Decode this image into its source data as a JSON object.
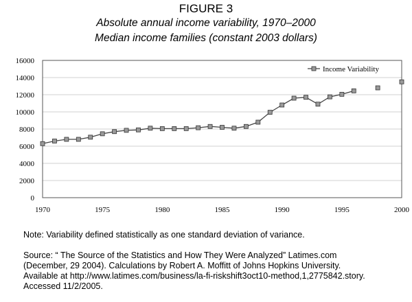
{
  "figure_label": "FIGURE 3",
  "note": "Note: Variability defined statistically as one standard deviation of variance.",
  "source_lines": [
    "Source: “ The Source of the Statistics and How They Were Analyzed”  Latimes.com",
    "(December, 29 2004).  Calculations by Robert A. Moffitt of Johns Hopkins University.",
    "Available at http://www.latimes.com/business/la-fi-riskshift3oct10-method,1,2775842.story.",
    "Accessed 11/2/2005."
  ],
  "chart_data": {
    "type": "line",
    "title": "Absolute annual income variability, 1970–2000",
    "subtitle": "Median income families (constant 2003 dollars)",
    "xlabel": "",
    "ylabel": "",
    "xlim": [
      1970,
      2000
    ],
    "ylim": [
      0,
      16000
    ],
    "x_ticks": [
      1970,
      1975,
      1980,
      1985,
      1990,
      1995,
      2000
    ],
    "y_ticks": [
      0,
      2000,
      4000,
      6000,
      8000,
      10000,
      12000,
      14000,
      16000
    ],
    "grid": "horizontal",
    "legend": "top-right",
    "marker": "square",
    "colors": {
      "line": "#444444",
      "marker_fill": "#9a9a9a",
      "grid": "#d0d0d0"
    },
    "series": [
      {
        "name": "Income Variability",
        "points": [
          [
            1970,
            6300
          ],
          [
            1971,
            6600
          ],
          [
            1972,
            6800
          ],
          [
            1973,
            6800
          ],
          [
            1974,
            7050
          ],
          [
            1975,
            7450
          ],
          [
            1976,
            7700
          ],
          [
            1977,
            7850
          ],
          [
            1978,
            7900
          ],
          [
            1979,
            8100
          ],
          [
            1980,
            8050
          ],
          [
            1981,
            8050
          ],
          [
            1982,
            8050
          ],
          [
            1983,
            8150
          ],
          [
            1984,
            8300
          ],
          [
            1985,
            8200
          ],
          [
            1986,
            8100
          ],
          [
            1987,
            8300
          ],
          [
            1988,
            8800
          ],
          [
            1989,
            9950
          ],
          [
            1990,
            10800
          ],
          [
            1991,
            11600
          ],
          [
            1992,
            11700
          ],
          [
            1993,
            10900
          ],
          [
            1994,
            11750
          ],
          [
            1995,
            12050
          ],
          [
            1996,
            12450
          ],
          [
            1998,
            12800
          ],
          [
            2000,
            13500
          ]
        ],
        "connected_through": 1996
      }
    ]
  }
}
